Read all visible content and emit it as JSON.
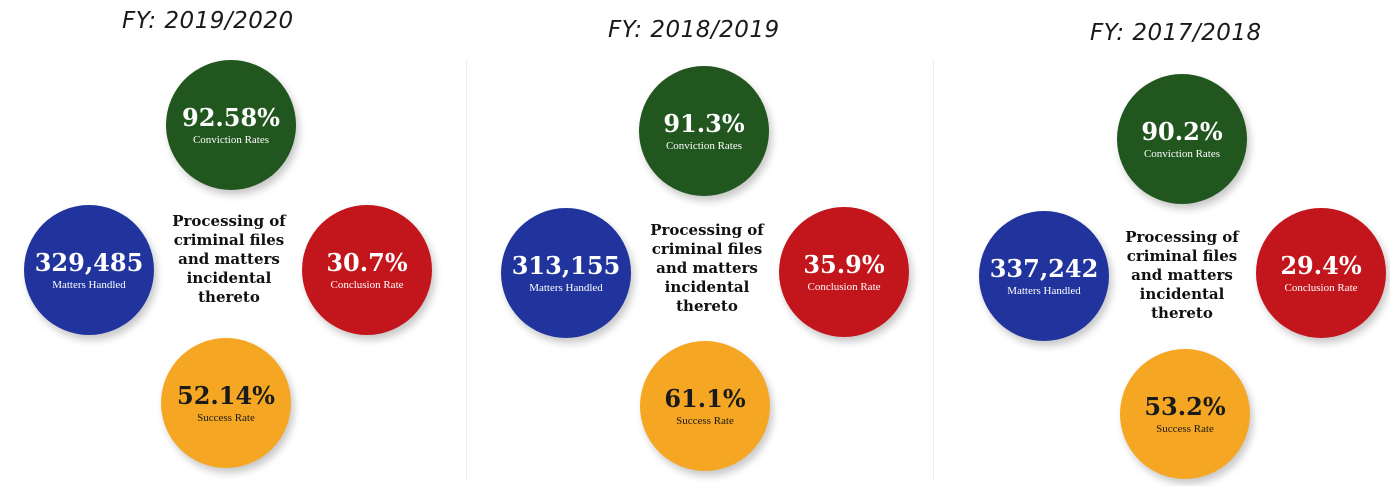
{
  "panels": [
    {
      "title": "FY: 2019/2020",
      "conviction": {
        "value": "92.58%",
        "label": "Conviction Rates"
      },
      "matters": {
        "value": "329,485",
        "label": "Matters Handled"
      },
      "conclusion": {
        "value": "30.7%",
        "label": "Conclusion Rate"
      },
      "success": {
        "value": "52.14%",
        "label": "Success Rate"
      },
      "center": [
        "Processing of",
        "criminal files",
        "and matters",
        "incidental",
        "thereto"
      ]
    },
    {
      "title": "FY: 2018/2019",
      "conviction": {
        "value": "91.3%",
        "label": "Conviction Rates"
      },
      "matters": {
        "value": "313,155",
        "label": "Matters Handled"
      },
      "conclusion": {
        "value": "35.9%",
        "label": "Conclusion Rate"
      },
      "success": {
        "value": "61.1%",
        "label": "Success Rate"
      },
      "center": [
        "Processing of",
        "criminal files",
        "and matters",
        "incidental",
        "thereto"
      ]
    },
    {
      "title": "FY: 2017/2018",
      "conviction": {
        "value": "90.2%",
        "label": "Conviction Rates"
      },
      "matters": {
        "value": "337,242",
        "label": "Matters Handled"
      },
      "conclusion": {
        "value": "29.4%",
        "label": "Conclusion Rate"
      },
      "success": {
        "value": "53.2%",
        "label": "Success Rate"
      },
      "center": [
        "Processing of",
        "criminal files",
        "and matters",
        "incidental",
        "thereto"
      ]
    }
  ],
  "colors": {
    "conviction": "#22561f",
    "matters": "#21349e",
    "conclusion": "#c3161c",
    "success": "#f5a723"
  }
}
